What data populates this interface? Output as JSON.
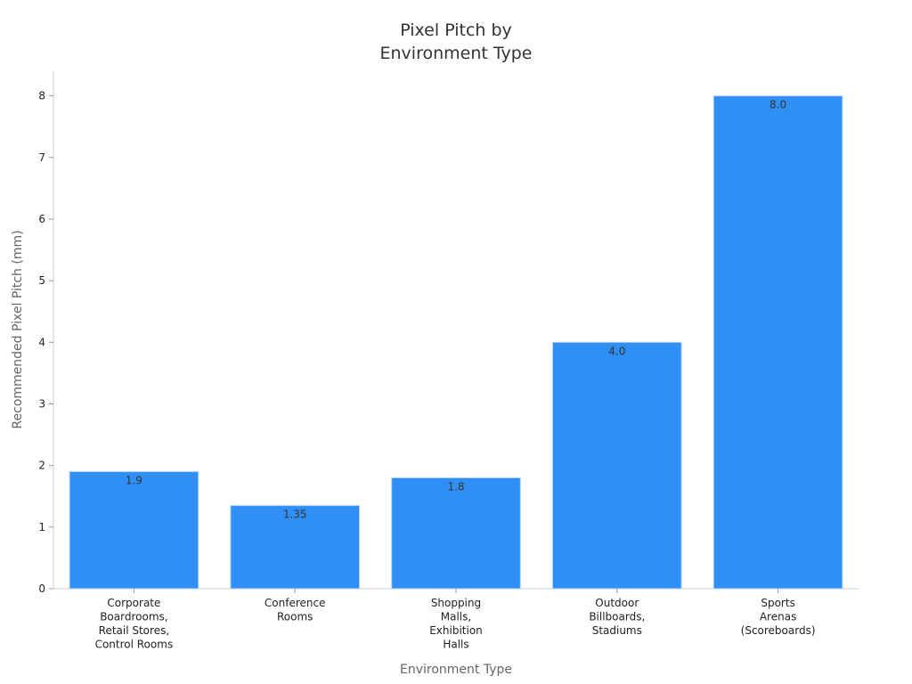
{
  "chart_data": {
    "type": "bar",
    "title_lines": [
      "Pixel Pitch by",
      "Environment Type"
    ],
    "xlabel": "Environment Type",
    "ylabel": "Recommended Pixel Pitch (mm)",
    "categories": [
      [
        "Corporate",
        "Boardrooms,",
        "Retail Stores,",
        "Control Rooms"
      ],
      [
        "Conference",
        "Rooms"
      ],
      [
        "Shopping",
        "Malls,",
        "Exhibition",
        "Halls"
      ],
      [
        "Outdoor",
        "Billboards,",
        "Stadiums"
      ],
      [
        "Sports",
        "Arenas",
        "(Scoreboards)"
      ]
    ],
    "values": [
      1.9,
      1.35,
      1.8,
      4.0,
      8.0
    ],
    "value_labels": [
      "1.9",
      "1.35",
      "1.8",
      "4.0",
      "8.0"
    ],
    "yticks": [
      "0",
      "1",
      "2",
      "3",
      "4",
      "5",
      "6",
      "7",
      "8"
    ],
    "ylim": [
      0,
      8.4
    ],
    "grid": false,
    "legend": "none",
    "bar_color": "#2f8ff5",
    "bar_edge_color": "#b3d4f7"
  }
}
